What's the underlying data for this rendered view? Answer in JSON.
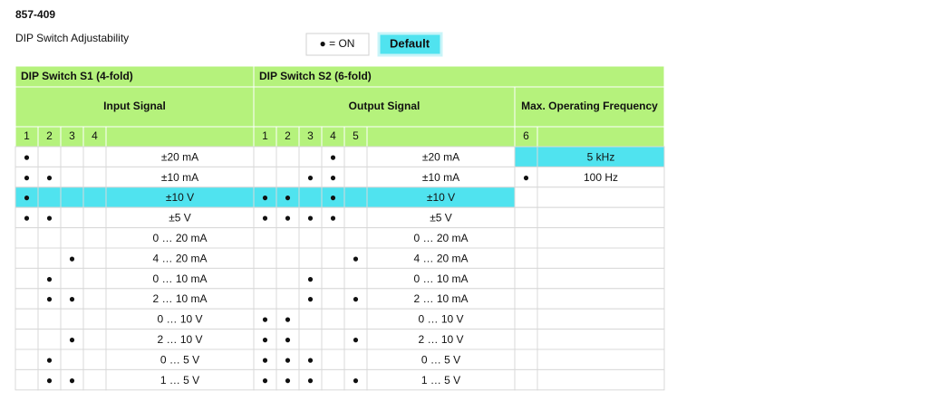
{
  "header": {
    "code": "857-409",
    "title": "DIP Switch Adjustability",
    "legend_on": "● = ON",
    "legend_default": "Default"
  },
  "table": {
    "group_headers": [
      "DIP Switch S1 (4-fold)",
      "DIP Switch S2 (6-fold)"
    ],
    "section_headers": [
      "Input Signal",
      "Output Signal",
      "Max. Operating Frequency"
    ],
    "s1_switches": [
      "1",
      "2",
      "3",
      "4"
    ],
    "s2_switches": [
      "1",
      "2",
      "3",
      "4",
      "5"
    ],
    "frequency_switch": "6",
    "rows": [
      {
        "s1": [
          "●",
          null,
          null,
          null
        ],
        "input": "±20 mA",
        "s2": [
          null,
          null,
          null,
          "●",
          null
        ],
        "output": "±20 mA"
      },
      {
        "s1": [
          "●",
          "●",
          null,
          null
        ],
        "input": "±10 mA",
        "s2": [
          null,
          null,
          "●",
          "●",
          null
        ],
        "output": "±10 mA"
      },
      {
        "s1": [
          "●",
          null,
          null,
          null
        ],
        "input": "±10 V",
        "s2": [
          "●",
          "●",
          null,
          "●",
          null
        ],
        "output": "±10 V",
        "default": true
      },
      {
        "s1": [
          "●",
          "●",
          null,
          null
        ],
        "input": "±5 V",
        "s2": [
          "●",
          "●",
          "●",
          "●",
          null
        ],
        "output": "±5 V"
      },
      {
        "s1": [
          null,
          null,
          null,
          null
        ],
        "input": "0 … 20 mA",
        "s2": [
          null,
          null,
          null,
          null,
          null
        ],
        "output": "0 … 20 mA"
      },
      {
        "s1": [
          null,
          null,
          "●",
          null
        ],
        "input": "4 … 20 mA",
        "s2": [
          null,
          null,
          null,
          null,
          "●"
        ],
        "output": "4 … 20 mA"
      },
      {
        "s1": [
          null,
          "●",
          null,
          null
        ],
        "input": "0 … 10 mA",
        "s2": [
          null,
          null,
          "●",
          null,
          null
        ],
        "output": "0 … 10 mA"
      },
      {
        "s1": [
          null,
          "●",
          "●",
          null
        ],
        "input": "2 … 10 mA",
        "s2": [
          null,
          null,
          "●",
          null,
          "●"
        ],
        "output": "2 … 10 mA"
      },
      {
        "s1": [
          null,
          null,
          null,
          null
        ],
        "input": "0 … 10 V",
        "s2": [
          "●",
          "●",
          null,
          null,
          null
        ],
        "output": "0 … 10 V"
      },
      {
        "s1": [
          null,
          null,
          "●",
          null
        ],
        "input": "2 … 10 V",
        "s2": [
          "●",
          "●",
          null,
          null,
          "●"
        ],
        "output": "2 … 10 V"
      },
      {
        "s1": [
          null,
          "●",
          null,
          null
        ],
        "input": "0 … 5 V",
        "s2": [
          "●",
          "●",
          "●",
          null,
          null
        ],
        "output": "0 … 5 V"
      },
      {
        "s1": [
          null,
          "●",
          "●",
          null
        ],
        "input": "1 … 5 V",
        "s2": [
          "●",
          "●",
          "●",
          null,
          "●"
        ],
        "output": "1 … 5 V"
      }
    ],
    "frequency_rows": [
      {
        "s6": null,
        "frequency": "5 kHz",
        "default": true
      },
      {
        "s6": "●",
        "frequency": "100 Hz"
      }
    ]
  }
}
